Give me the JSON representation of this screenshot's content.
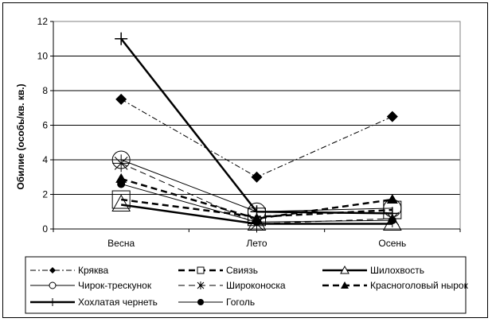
{
  "chart_data": {
    "type": "line",
    "title": "",
    "xlabel": "",
    "ylabel": "Обилие (особь/кв. кв.)",
    "categories": [
      "Весна",
      "Лето",
      "Осень"
    ],
    "ylim": [
      0,
      12
    ],
    "yticks": [
      0,
      2,
      4,
      6,
      8,
      10,
      12
    ],
    "grid": true,
    "legend_position": "bottom",
    "series": [
      {
        "name": "Кряква",
        "values": [
          7.5,
          3.0,
          6.5
        ],
        "marker": "diamond",
        "dash": "dashdot",
        "width": 1
      },
      {
        "name": "Свиязь",
        "values": [
          1.7,
          0.7,
          1.1
        ],
        "marker": "square",
        "dash": "dash",
        "width": 2.5
      },
      {
        "name": "Шилохвость",
        "values": [
          1.4,
          0.3,
          0.3
        ],
        "marker": "triangle",
        "dash": "solid",
        "width": 2.5
      },
      {
        "name": "Чирок-трескунок",
        "values": [
          4.0,
          1.0,
          1.2
        ],
        "marker": "circle",
        "dash": "solid",
        "width": 1
      },
      {
        "name": "Широконоска",
        "values": [
          3.8,
          0.3,
          0.6
        ],
        "marker": "asterisk",
        "dash": "dash",
        "width": 1
      },
      {
        "name": "Красноголовый нырок",
        "values": [
          2.9,
          0.6,
          1.7
        ],
        "marker": "triangle-filled",
        "dash": "dash",
        "width": 2.5
      },
      {
        "name": "Хохлатая чернеть",
        "values": [
          11.0,
          1.0,
          0.9
        ],
        "marker": "plus",
        "dash": "solid",
        "width": 2.5
      },
      {
        "name": "Гоголь",
        "values": [
          2.6,
          0.4,
          0.5
        ],
        "marker": "dot",
        "dash": "solid",
        "width": 1
      }
    ]
  }
}
